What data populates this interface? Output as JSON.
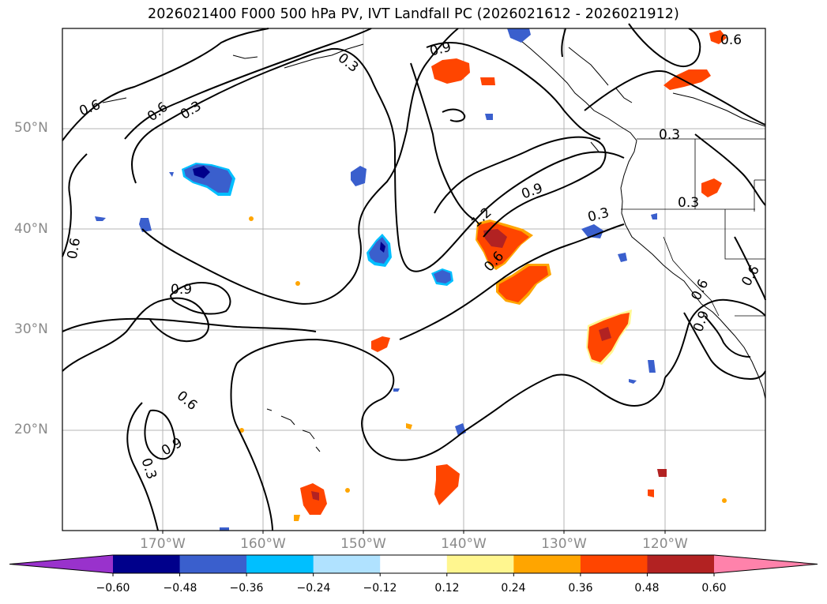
{
  "title": "2026021400 F000 500 hPa PV, IVT Landfall PC (2026021612 - 2026021912)",
  "lat_labels": [
    "50°N",
    "40°N",
    "30°N",
    "20°N"
  ],
  "lon_labels": [
    "170°W",
    "160°W",
    "150°W",
    "140°W",
    "130°W",
    "120°W"
  ],
  "contour_labels": [
    "0.6",
    "0.6",
    "0.3",
    "0.3",
    "0.9",
    "0.6",
    "0.3",
    "0.9",
    "1.2",
    "0.6",
    "0.3",
    "0.9",
    "0.6",
    "0.9",
    "0.3",
    "0.6",
    "0.6",
    "0.9",
    "0.3",
    "0.6"
  ],
  "colorbar": {
    "ticks": [
      "−0.60",
      "−0.48",
      "−0.36",
      "−0.24",
      "−0.12",
      "0.12",
      "0.24",
      "0.36",
      "0.48",
      "0.60"
    ],
    "colors": {
      "under": "#9932cc",
      "b1": "#00008b",
      "b2": "#3a5fcd",
      "b3": "#00bfff",
      "b4": "#b0e2ff",
      "b5": "#ffffff",
      "b6": "#fff68f",
      "b7": "#ffa500",
      "b8": "#ff4500",
      "b9": "#b22222",
      "over": "#ff82ab"
    }
  },
  "map": {
    "extent_lon": [
      -180,
      -110
    ],
    "extent_lat": [
      10,
      60
    ],
    "gridlines": true
  }
}
